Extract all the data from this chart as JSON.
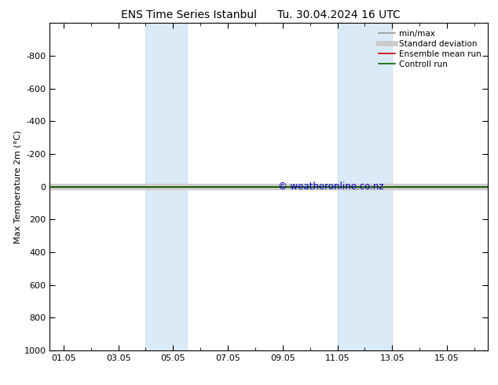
{
  "title_left": "ENS Time Series Istanbul",
  "title_right": "Tu. 30.04.2024 16 UTC",
  "ylabel": "Max Temperature 2m (°C)",
  "xtick_labels": [
    "01.05",
    "03.05",
    "05.05",
    "07.05",
    "09.05",
    "11.05",
    "13.05",
    "15.05"
  ],
  "xtick_positions": [
    1,
    3,
    5,
    7,
    9,
    11,
    13,
    15
  ],
  "xlim": [
    0.5,
    16.5
  ],
  "ylim_top": -1000,
  "ylim_bottom": 1000,
  "ytick_positions": [
    -800,
    -600,
    -400,
    -200,
    0,
    200,
    400,
    600,
    800,
    1000
  ],
  "ytick_labels": [
    "-800",
    "-600",
    "-400",
    "-200",
    "0",
    "200",
    "400",
    "600",
    "800",
    "1000"
  ],
  "shaded_bands": [
    {
      "x_start": 4.0,
      "x_end": 5.5
    },
    {
      "x_start": 11.0,
      "x_end": 13.0
    }
  ],
  "shaded_color": "#daeaf6",
  "shaded_edgecolor": "#c0d8ee",
  "data_line_y": 0.0,
  "ensemble_mean_color": "#cc0000",
  "control_run_color": "#006600",
  "min_max_color": "#999999",
  "std_dev_color": "#cccccc",
  "watermark_text": "© weatheronline.co.nz",
  "watermark_color": "#0000bb",
  "watermark_fontsize": 8.5,
  "bg_color": "#ffffff",
  "legend_entries": [
    {
      "label": "min/max",
      "color": "#999999",
      "lw": 1.2
    },
    {
      "label": "Standard deviation",
      "color": "#cccccc",
      "lw": 5
    },
    {
      "label": "Ensemble mean run",
      "color": "#cc0000",
      "lw": 1.2
    },
    {
      "label": "Controll run",
      "color": "#006600",
      "lw": 1.2
    }
  ],
  "title_fontsize": 10,
  "axis_label_fontsize": 8,
  "tick_fontsize": 8,
  "legend_fontsize": 7.5
}
